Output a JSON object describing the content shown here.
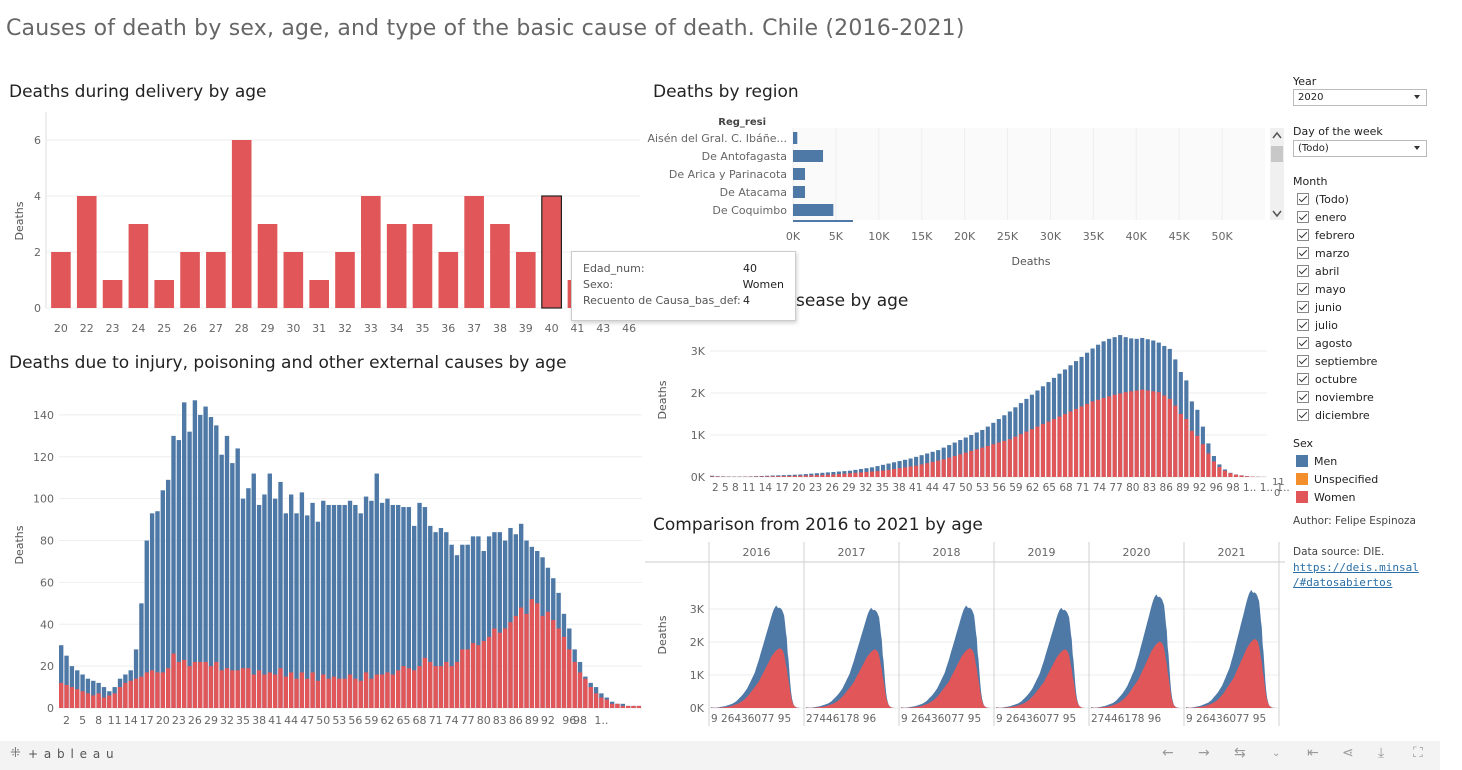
{
  "title": "Causes of death by sex, age, and type of the basic cause of death. Chile (2016-2021)",
  "colors": {
    "men": "#4e79a7",
    "women": "#e15759",
    "unspecified": "#f28e2b",
    "grid": "#eeeeee"
  },
  "panels": {
    "delivery": {
      "title": "Deaths during delivery by age",
      "ylabel": "Deaths",
      "ticks": [
        "0",
        "2",
        "4",
        "6"
      ]
    },
    "injury": {
      "title": "Deaths due to injury, poisoning and other external causes by age",
      "ylabel": "Deaths",
      "ticks": [
        "0",
        "20",
        "40",
        "60",
        "80",
        "100",
        "120",
        "140"
      ],
      "xlabels": [
        "2",
        "5",
        "8",
        "11",
        "14",
        "17",
        "20",
        "23",
        "26",
        "29",
        "32",
        "35",
        "38",
        "41",
        "44",
        "47",
        "50",
        "53",
        "56",
        "59",
        "62",
        "65",
        "68",
        "71",
        "74",
        "77",
        "80",
        "83",
        "86",
        "89",
        "92",
        "96",
        "98",
        "1.."
      ]
    },
    "region": {
      "title": "Deaths by region",
      "header": "Reg_resi",
      "xlabel": "Deaths",
      "xticks": [
        "0K",
        "5K",
        "10K",
        "15K",
        "20K",
        "25K",
        "30K",
        "35K",
        "40K",
        "45K",
        "50K"
      ]
    },
    "disease": {
      "title": "sease by age",
      "ylabel": "Deaths",
      "ticks": [
        "0K",
        "1K",
        "2K",
        "3K"
      ],
      "xlabels_text": "2  5  8  11 14 17 20 23 26 29 32 35 38 41 44 47 50 53 56 59 62 65 68 71 74 77 80 83 86 89 92 96 98 1.. 1.. 1.. 1..",
      "corner_label": "11\n0"
    },
    "comparison": {
      "title": "Comparison from 2016 to 2021 by age",
      "ylabel": "Deaths",
      "ticks": [
        "0K",
        "1K",
        "2K",
        "3K"
      ],
      "years": [
        "2016",
        "2017",
        "2018",
        "2019",
        "2020",
        "2021"
      ],
      "xlabels": [
        "9  26436077 95",
        "27446178 96",
        "9  26436077 95",
        "9  26436077 95",
        "27446178 96",
        "9  26436077 95"
      ]
    }
  },
  "tooltip": {
    "rows": [
      {
        "k": "Edad_num:",
        "v": "40"
      },
      {
        "k": "Sexo:",
        "v": "Women"
      },
      {
        "k": "Recuento de Causa_bas_def:",
        "v": "4"
      }
    ]
  },
  "chart_data": [
    {
      "type": "bar",
      "title": "Deaths during delivery by age",
      "ylabel": "Deaths",
      "ylim": [
        0,
        7
      ],
      "categories": [
        "20",
        "22",
        "23",
        "24",
        "25",
        "26",
        "27",
        "28",
        "29",
        "30",
        "31",
        "32",
        "33",
        "34",
        "35",
        "36",
        "37",
        "38",
        "39",
        "40",
        "41",
        "43",
        "46"
      ],
      "values": [
        2,
        4,
        1,
        3,
        1,
        2,
        2,
        6,
        3,
        2,
        1,
        2,
        4,
        3,
        3,
        2,
        4,
        3,
        2,
        4,
        1,
        1,
        1
      ],
      "highlight": "40"
    },
    {
      "type": "bar",
      "title": "Deaths by region",
      "xlabel": "Deaths",
      "xlim": [
        0,
        55000
      ],
      "categories": [
        "De Aisén del Gral. C. Ibáñe...",
        "De Antofagasta",
        "De Arica y Parinacota",
        "De Atacama",
        "De Coquimbo"
      ],
      "values": [
        500,
        3500,
        1400,
        1400,
        4700
      ]
    },
    {
      "type": "bar",
      "title": "Deaths due to injury, poisoning and other external causes by age",
      "ylabel": "Deaths",
      "ylim": [
        0,
        150
      ],
      "x_start": 1,
      "series": [
        {
          "name": "Men",
          "values": [
            30,
            25,
            20,
            18,
            16,
            14,
            13,
            12,
            10,
            8,
            10,
            14,
            16,
            18,
            28,
            50,
            80,
            93,
            94,
            104,
            109,
            130,
            128,
            146,
            132,
            147,
            140,
            144,
            139,
            135,
            121,
            130,
            117,
            124,
            100,
            105,
            112,
            97,
            102,
            112,
            100,
            108,
            93,
            102,
            93,
            103,
            92,
            98,
            89,
            99,
            97,
            97,
            97,
            97,
            99,
            97,
            93,
            101,
            99,
            112,
            98,
            100,
            97,
            97,
            96,
            96,
            87,
            98,
            96,
            87,
            84,
            86,
            84,
            78,
            73,
            78,
            78,
            82,
            82,
            75,
            82,
            84,
            84,
            80,
            86,
            83,
            88,
            80,
            77,
            75,
            72,
            67,
            62,
            55,
            45,
            38,
            28,
            22,
            15,
            12,
            10,
            7,
            5,
            3,
            2,
            2,
            1,
            1,
            1
          ]
        },
        {
          "name": "Women",
          "values": [
            12,
            11,
            10,
            9,
            8,
            7,
            6,
            7,
            5,
            6,
            7,
            10,
            12,
            13,
            14,
            15,
            17,
            18,
            17,
            17,
            19,
            26,
            22,
            23,
            20,
            22,
            22,
            22,
            20,
            22,
            18,
            19,
            18,
            18,
            19,
            19,
            16,
            18,
            16,
            17,
            16,
            19,
            15,
            17,
            14,
            17,
            14,
            17,
            13,
            16,
            14,
            15,
            14,
            14,
            16,
            14,
            13,
            17,
            14,
            16,
            16,
            17,
            16,
            18,
            20,
            19,
            18,
            20,
            24,
            22,
            20,
            20,
            22,
            20,
            22,
            28,
            28,
            31,
            30,
            32,
            34,
            38,
            36,
            38,
            41,
            44,
            48,
            45,
            52,
            50,
            44,
            46,
            42,
            38,
            34,
            28,
            22,
            17,
            14,
            10,
            7,
            5,
            4,
            2,
            2,
            1,
            1,
            1,
            1
          ]
        }
      ]
    },
    {
      "type": "bar",
      "title": "sease by age",
      "ylabel": "Deaths",
      "ylim": [
        0,
        3500
      ],
      "x_start": 1,
      "series": [
        {
          "name": "Men",
          "values": [
            30,
            20,
            15,
            12,
            10,
            10,
            12,
            15,
            20,
            25,
            30,
            35,
            40,
            45,
            50,
            55,
            60,
            70,
            80,
            90,
            100,
            110,
            120,
            130,
            140,
            150,
            170,
            190,
            210,
            230,
            260,
            290,
            320,
            350,
            380,
            410,
            440,
            480,
            520,
            560,
            600,
            640,
            700,
            760,
            820,
            880,
            940,
            1000,
            1060,
            1120,
            1200,
            1290,
            1380,
            1470,
            1560,
            1660,
            1760,
            1860,
            1960,
            2060,
            2160,
            2260,
            2360,
            2460,
            2560,
            2660,
            2760,
            2860,
            2960,
            3060,
            3150,
            3230,
            3290,
            3330,
            3380,
            3330,
            3300,
            3290,
            3310,
            3280,
            3250,
            3200,
            3120,
            3050,
            2800,
            2500,
            2300,
            1800,
            1600,
            1200,
            800,
            500,
            300,
            180,
            100,
            60,
            40,
            20,
            10,
            5,
            3
          ]
        },
        {
          "name": "Women",
          "values": [
            15,
            10,
            8,
            6,
            5,
            5,
            6,
            8,
            10,
            12,
            15,
            18,
            20,
            22,
            25,
            28,
            32,
            36,
            40,
            45,
            50,
            55,
            60,
            70,
            80,
            90,
            100,
            110,
            120,
            130,
            140,
            155,
            170,
            190,
            210,
            230,
            250,
            270,
            300,
            330,
            360,
            390,
            420,
            460,
            500,
            540,
            580,
            620,
            660,
            700,
            740,
            780,
            820,
            860,
            900,
            960,
            1020,
            1080,
            1140,
            1200,
            1260,
            1320,
            1380,
            1440,
            1500,
            1560,
            1620,
            1680,
            1740,
            1800,
            1840,
            1880,
            1920,
            1960,
            1990,
            2020,
            2040,
            2060,
            2080,
            2060,
            2040,
            2020,
            1940,
            1860,
            1700,
            1500,
            1380,
            1100,
            980,
            780,
            560,
            370,
            240,
            150,
            90,
            55,
            35,
            18,
            9,
            4,
            2
          ]
        }
      ]
    }
  ],
  "filters": {
    "year": {
      "label": "Year",
      "value": "2020"
    },
    "weekday": {
      "label": "Day of the week",
      "value": "(Todo)"
    },
    "month": {
      "label": "Month",
      "items": [
        "(Todo)",
        "enero",
        "febrero",
        "marzo",
        "abril",
        "mayo",
        "junio",
        "julio",
        "agosto",
        "septiembre",
        "octubre",
        "noviembre",
        "diciembre"
      ]
    }
  },
  "legend": {
    "label": "Sex",
    "items": [
      {
        "name": "Men",
        "color": "#4e79a7"
      },
      {
        "name": "Unspecified",
        "color": "#f28e2b"
      },
      {
        "name": "Women",
        "color": "#e15759"
      }
    ]
  },
  "credits": {
    "author": "Author: Felipe Espinoza",
    "source": "Data source: DIE.",
    "link_line1": "https://deis.minsal",
    "link_line2": "/#datosabiertos"
  },
  "footer": {
    "brand": "+ a b l e a u"
  }
}
